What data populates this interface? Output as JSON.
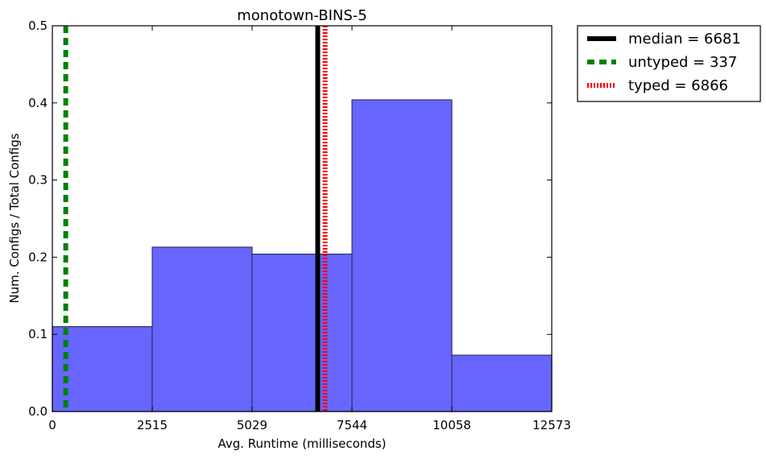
{
  "chart_data": {
    "type": "bar",
    "title": "monotown-BINS-5",
    "xlabel": "Avg. Runtime (milliseconds)",
    "ylabel": "Num. Configs / Total Configs",
    "xlim": [
      0,
      12573
    ],
    "ylim": [
      0,
      0.5
    ],
    "bin_edges": [
      0,
      2515,
      5029,
      7544,
      10058,
      12573
    ],
    "values": [
      0.11,
      0.213,
      0.204,
      0.404,
      0.073
    ],
    "bar_color": "#6666ff",
    "xticks": [
      0,
      2515,
      5029,
      7544,
      10058,
      12573
    ],
    "yticks": [
      0.0,
      0.1,
      0.2,
      0.3,
      0.4,
      0.5
    ],
    "ytick_labels": [
      "0.0",
      "0.1",
      "0.2",
      "0.3",
      "0.4",
      "0.5"
    ],
    "vlines": [
      {
        "label": "median = 6681",
        "x": 6681,
        "color": "#000000",
        "style": "solid"
      },
      {
        "label": "untyped = 337",
        "x": 337,
        "color": "#008000",
        "style": "dashed"
      },
      {
        "label": "typed = 6866",
        "x": 6866,
        "color": "#ff0000",
        "style": "dotted"
      }
    ],
    "legend_position": "outside-top-right",
    "grid": false
  }
}
